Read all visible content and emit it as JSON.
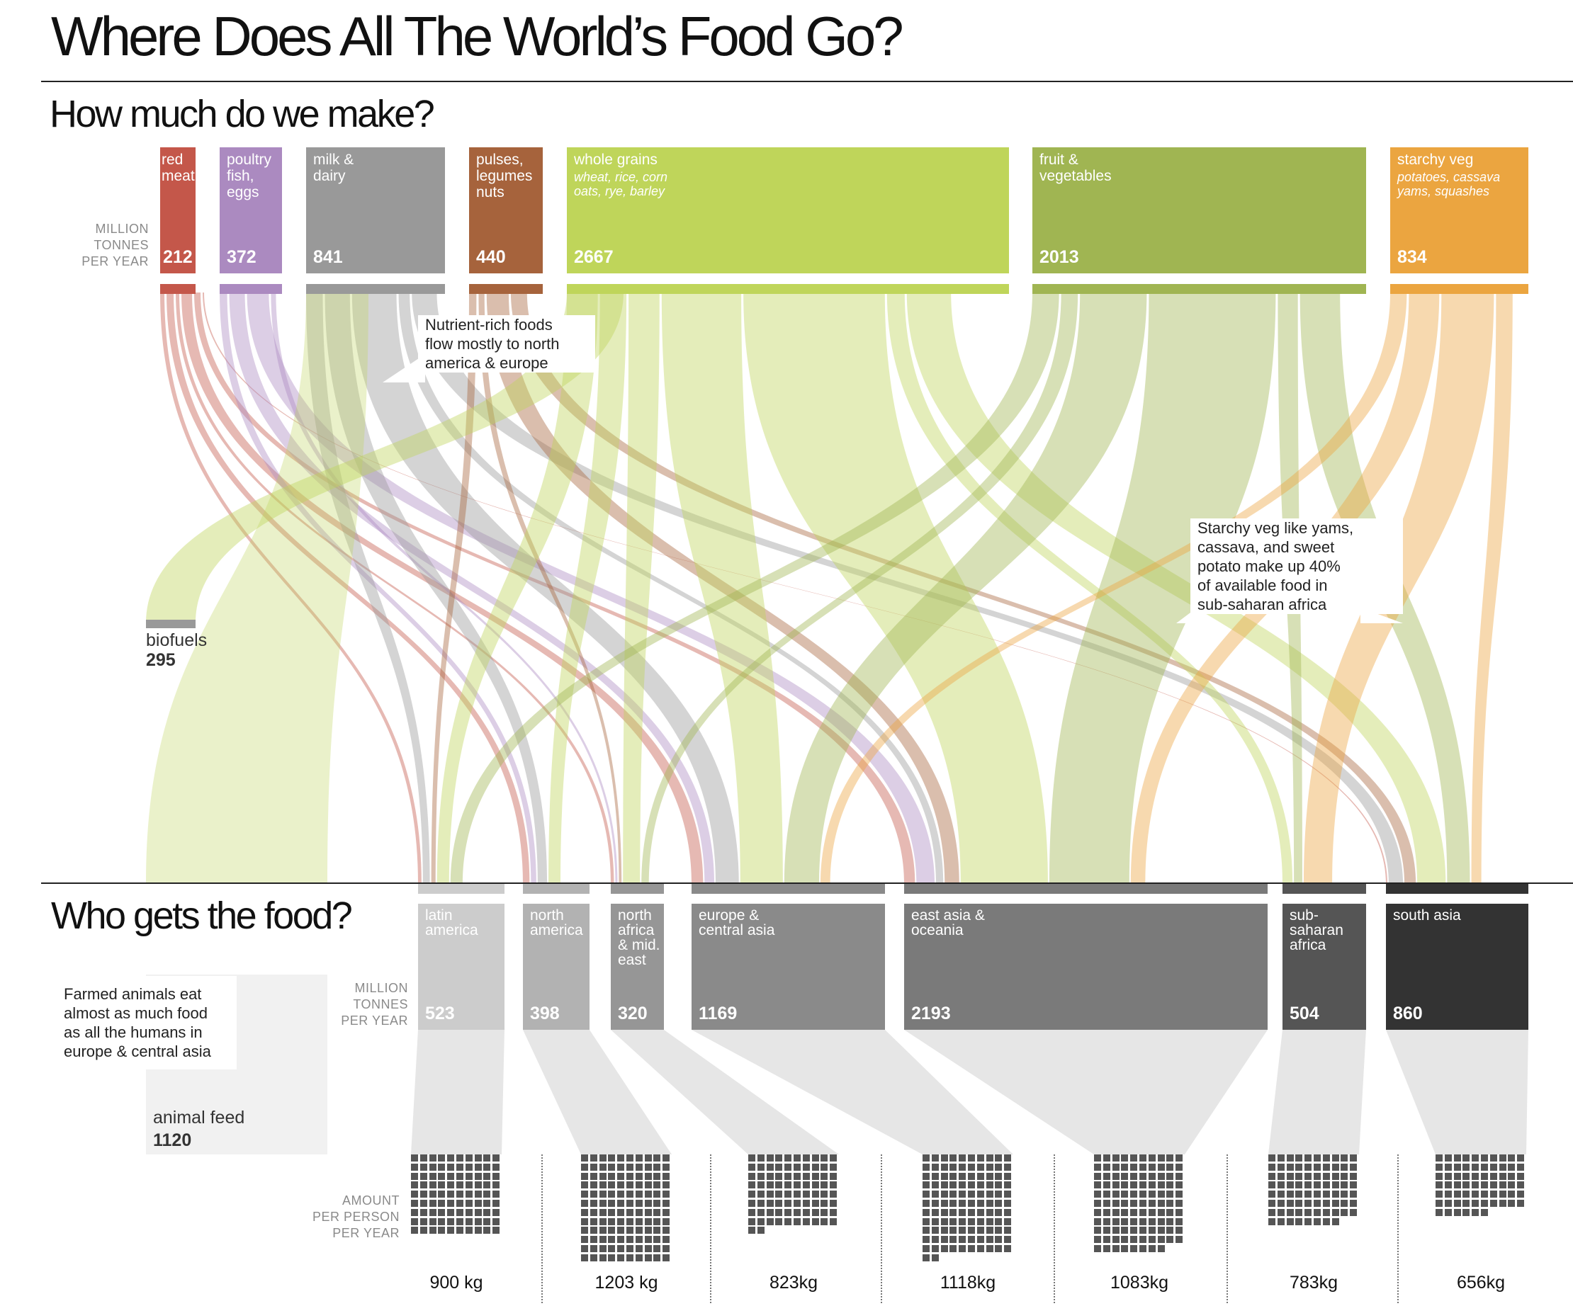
{
  "title": "Where Does All The World’s Food Go?",
  "section_make": "How much do we make?",
  "section_who": "Who gets the food?",
  "unit_label_top": "MILLION\nTONNES\nPER YEAR",
  "unit_label_mid": "MILLION\nTONNES\nPER YEAR",
  "unit_label_bottom": "AMOUNT\nPER PERSON\nPER YEAR",
  "sources": [
    {
      "name": "red\nmeat",
      "value": "212",
      "sub": "",
      "color": "#c4574a"
    },
    {
      "name": "poultry\nfish,\neggs",
      "value": "372",
      "sub": "",
      "color": "#ab8ac0"
    },
    {
      "name": "milk &\ndairy",
      "value": "841",
      "sub": "",
      "color": "#999999"
    },
    {
      "name": "pulses,\nlegumes\nnuts",
      "value": "440",
      "sub": "",
      "color": "#a6633c"
    },
    {
      "name": "whole grains",
      "value": "2667",
      "sub": "wheat, rice, corn\noats, rye, barley",
      "color": "#bfd55a"
    },
    {
      "name": "fruit &\nvegetables",
      "value": "2013",
      "sub": "",
      "color": "#a0b552"
    },
    {
      "name": "starchy veg",
      "value": "834",
      "sub": "potatoes, cassava\nyams, squashes",
      "color": "#eba540"
    }
  ],
  "regions": [
    {
      "name": "latin\namerica",
      "value": "523",
      "per_person": "900 kg",
      "color": "#cccccc"
    },
    {
      "name": "north\namerica",
      "value": "398",
      "per_person": "1203 kg",
      "color": "#b2b2b2"
    },
    {
      "name": "north\nafrica\n& mid.\neast",
      "value": "320",
      "per_person": "823kg",
      "color": "#969696"
    },
    {
      "name": "europe &\ncentral asia",
      "value": "1169",
      "per_person": "1118kg",
      "color": "#8a8a8a"
    },
    {
      "name": "east asia &\noceania",
      "value": "2193",
      "per_person": "1083kg",
      "color": "#7a7a7a"
    },
    {
      "name": "sub-\nsaharan\nafrica",
      "value": "504",
      "per_person": "783kg",
      "color": "#555555"
    },
    {
      "name": "south asia",
      "value": "860",
      "per_person": "656kg",
      "color": "#333333"
    }
  ],
  "biofuels": {
    "label": "biofuels",
    "value": "295"
  },
  "animal_feed": {
    "label": "animal feed",
    "value": "1120"
  },
  "callouts": {
    "nutrient": "Nutrient-rich foods\nflow mostly to north\namerica & europe",
    "starchy": "Starchy veg like yams,\ncassava, and sweet\npotato make up 40%\nof available food in\nsub-saharan africa",
    "farmed": "Farmed animals eat\nalmost as much food\nas all the humans in\neurope & central asia"
  }
}
